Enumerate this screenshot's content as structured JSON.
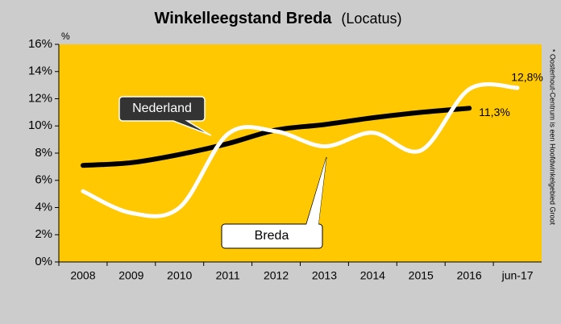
{
  "chart_data": {
    "type": "line",
    "title": "Winkelleegstand Breda",
    "subtitle": "(Locatus)",
    "y_label": "%",
    "note": "* Oosterhout-Centrum is een Hoofdwinkelgebied Groot",
    "categories": [
      "2008",
      "2009",
      "2010",
      "2011",
      "2012",
      "2013",
      "2014",
      "2015",
      "2016",
      "jun-17"
    ],
    "series": [
      {
        "name": "Nederland",
        "color": "#000000",
        "values": [
          7.1,
          7.3,
          7.9,
          8.7,
          9.7,
          10.1,
          10.6,
          11.0,
          11.3,
          null
        ],
        "value_labels": [
          null,
          null,
          null,
          null,
          null,
          null,
          null,
          null,
          "11,3%",
          null
        ]
      },
      {
        "name": "Breda",
        "color": "#ffffff",
        "values": [
          5.2,
          3.6,
          4.0,
          9.4,
          9.6,
          8.5,
          9.5,
          8.2,
          12.7,
          12.8
        ],
        "value_labels": [
          null,
          null,
          null,
          null,
          null,
          null,
          null,
          null,
          null,
          "12,8%"
        ]
      }
    ],
    "ylim": [
      0,
      16
    ],
    "yticks": [
      {
        "value": 0,
        "label": "0%"
      },
      {
        "value": 2,
        "label": "2%"
      },
      {
        "value": 4,
        "label": "4%"
      },
      {
        "value": 6,
        "label": "6%"
      },
      {
        "value": 8,
        "label": "8%"
      },
      {
        "value": 10,
        "label": "10%"
      },
      {
        "value": 12,
        "label": "12%"
      },
      {
        "value": 14,
        "label": "14%"
      },
      {
        "value": 16,
        "label": "16%"
      }
    ],
    "plot_color": "#ffc800",
    "background": "#cccccc"
  }
}
